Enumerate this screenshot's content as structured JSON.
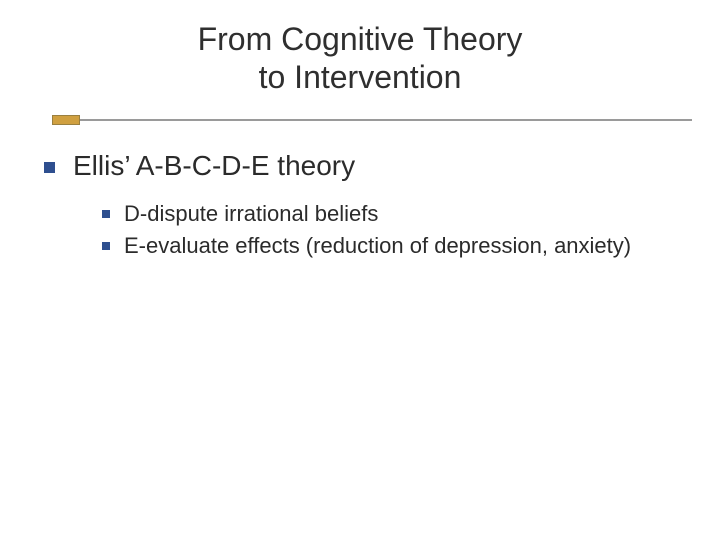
{
  "slide": {
    "title_line1": "From Cognitive Theory",
    "title_line2": "to Intervention",
    "title_color": "#2f2f2f",
    "title_fontsize": 32,
    "divider": {
      "line_color": "#9a9a9a",
      "box_fill": "#d0a040",
      "box_border": "#9a8040"
    },
    "bullet_color": "#2e4f8f",
    "body_color": "#2b2b2b",
    "lvl1_fontsize": 28,
    "lvl2_fontsize": 22,
    "lvl1": {
      "text": "Ellis’ A-B-C-D-E theory"
    },
    "lvl2": [
      {
        "text": "D-dispute irrational beliefs"
      },
      {
        "text": "E-evaluate effects (reduction of depression, anxiety)"
      }
    ],
    "background_color": "#ffffff"
  }
}
